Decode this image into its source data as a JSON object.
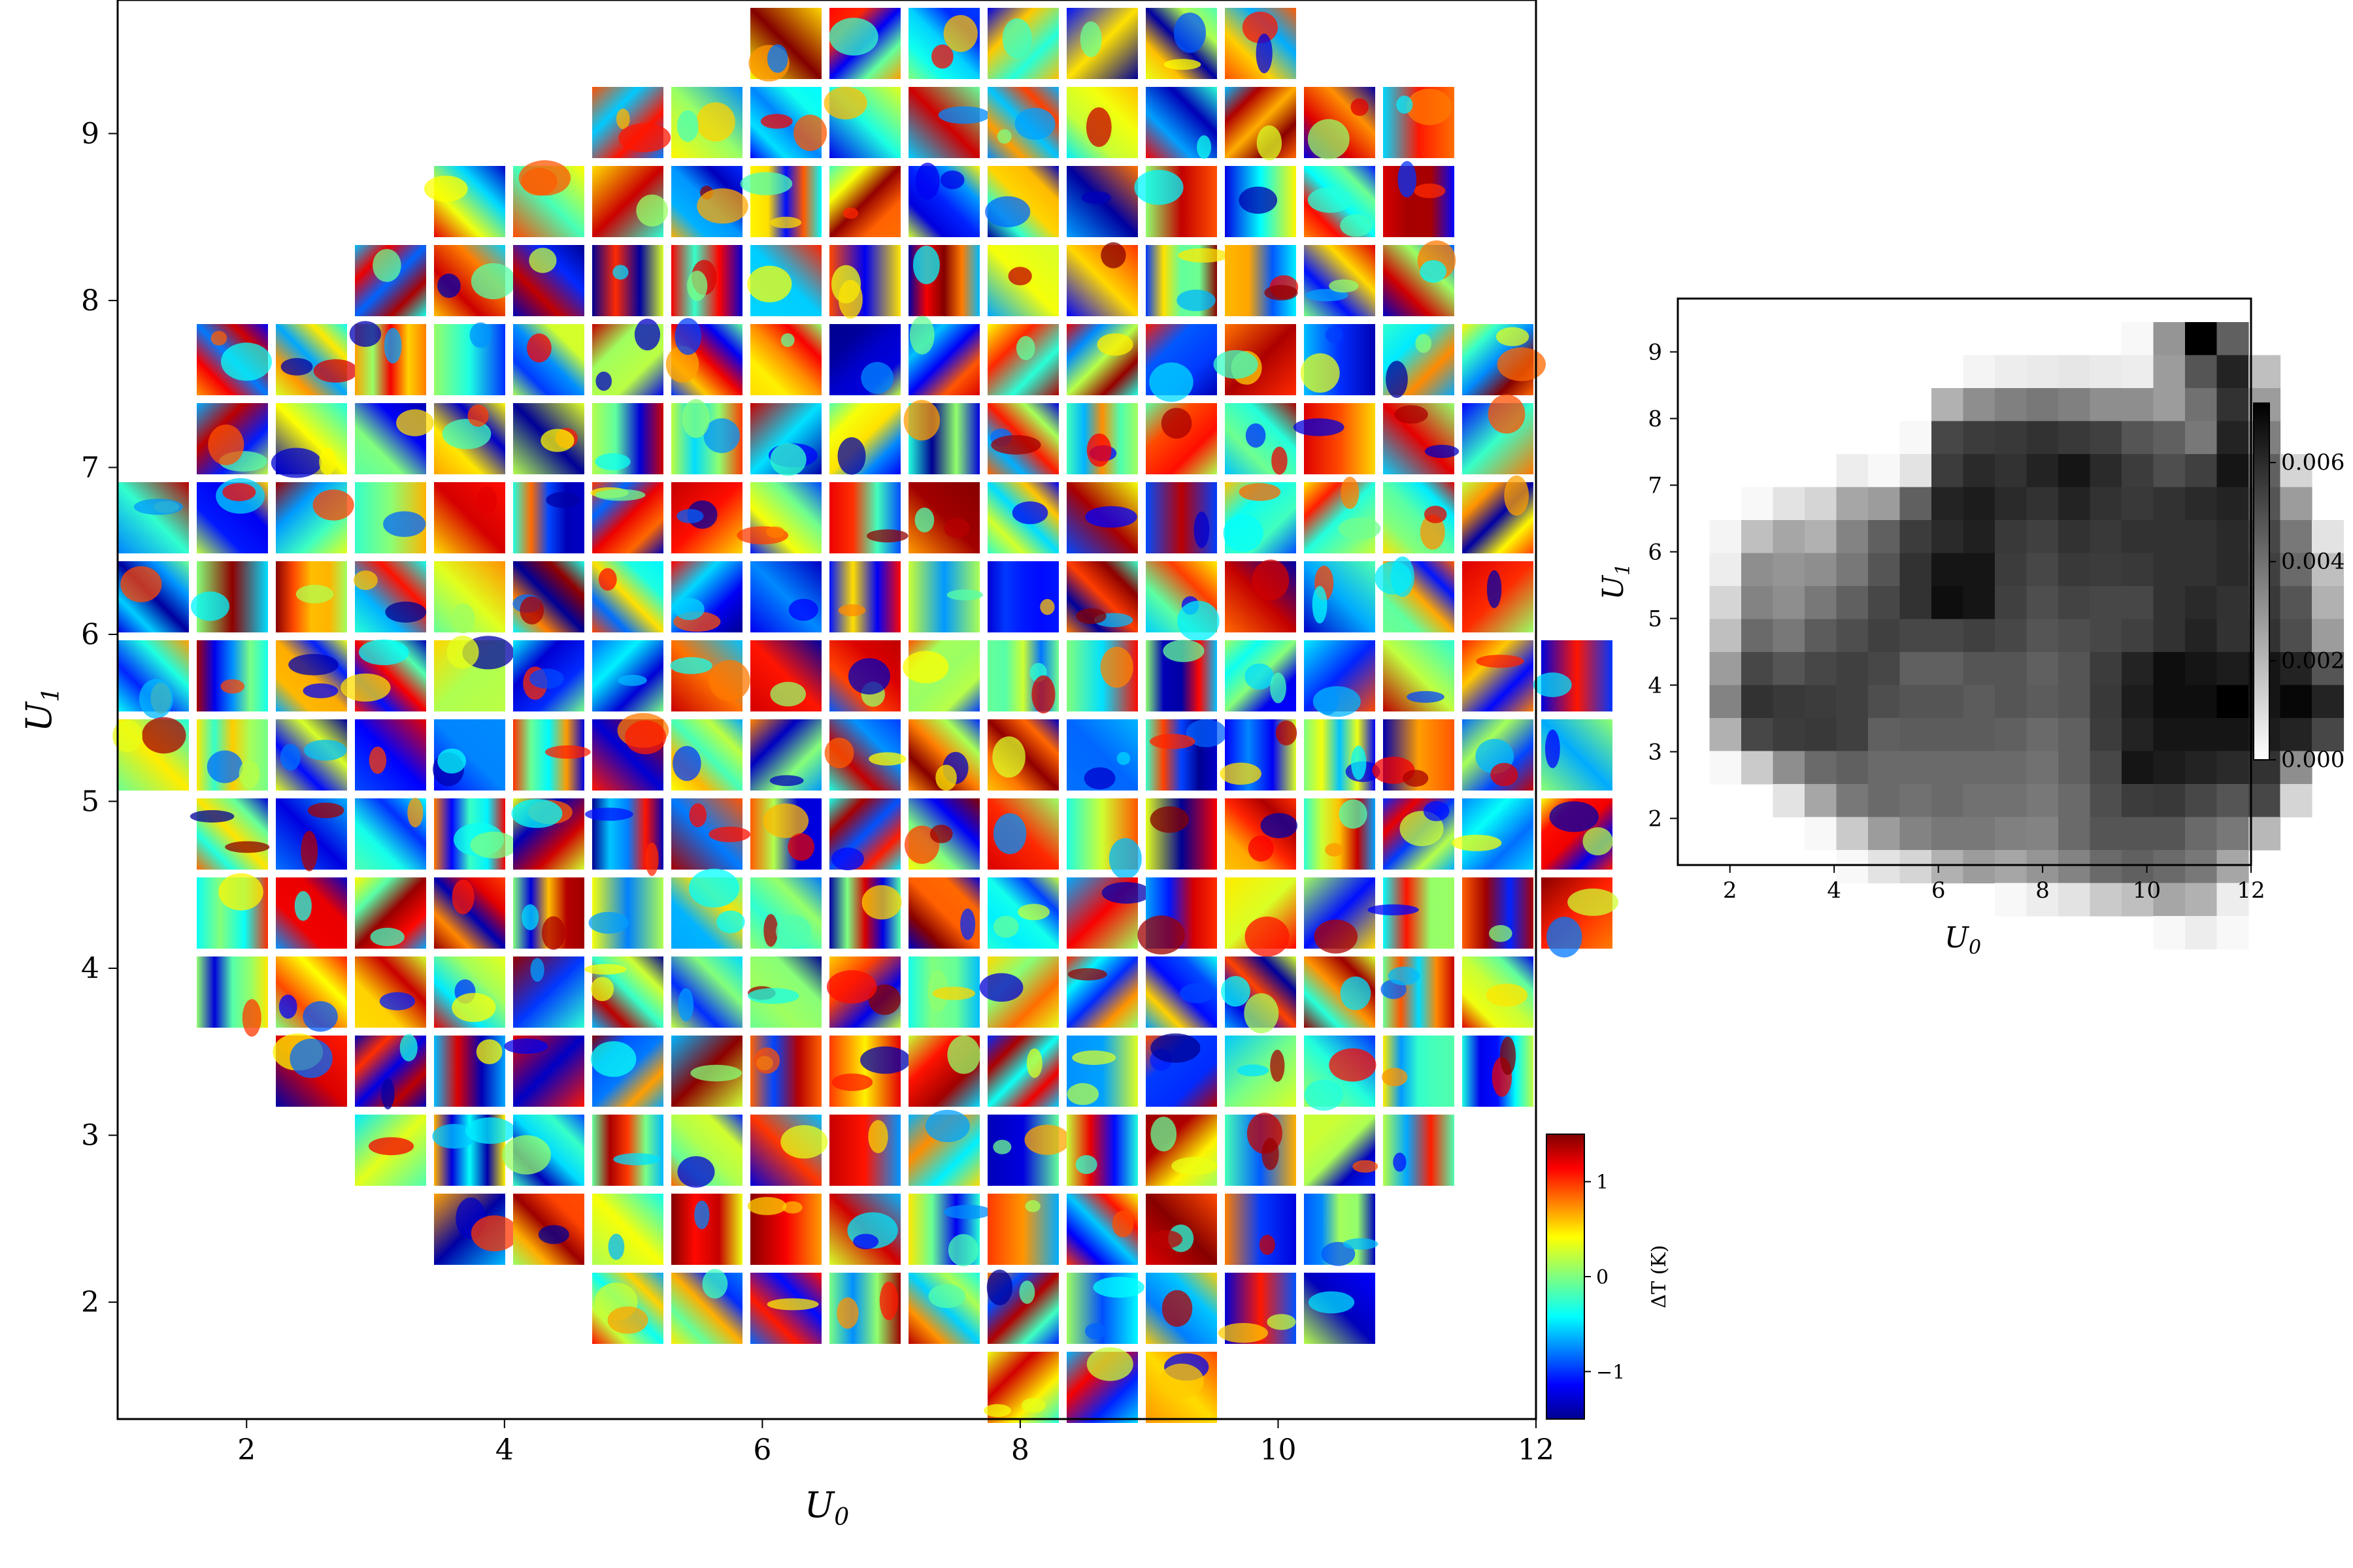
{
  "chart_data": [
    {
      "type": "heatmap",
      "description_role": "main tiled map",
      "xlabel": "U",
      "xlabel_sub": "0",
      "ylabel": "U",
      "ylabel_sub": "1",
      "xlim": [
        1.0,
        12.0
      ],
      "ylim": [
        1.3,
        9.8
      ],
      "xticks": [
        2,
        4,
        6,
        8,
        10,
        12
      ],
      "yticks": [
        2,
        3,
        4,
        5,
        6,
        7,
        8,
        9
      ],
      "colormap": "jet",
      "colorbar": {
        "label": "ΔT (K)",
        "ticks": [
          1,
          0,
          -1
        ],
        "tick_labels": [
          "1",
          "0",
          "−1"
        ],
        "range": [
          -1.5,
          1.5
        ]
      },
      "tile_rows": [
        {
          "row": 0,
          "cols": [
            8,
            9,
            10,
            11,
            12,
            13,
            14
          ]
        },
        {
          "row": 1,
          "cols": [
            6,
            7,
            8,
            9,
            10,
            11,
            12,
            13,
            14,
            15,
            16
          ]
        },
        {
          "row": 2,
          "cols": [
            4,
            5,
            6,
            7,
            8,
            9,
            10,
            11,
            12,
            13,
            14,
            15,
            16
          ]
        },
        {
          "row": 3,
          "cols": [
            3,
            4,
            5,
            6,
            7,
            8,
            9,
            10,
            11,
            12,
            13,
            14,
            15,
            16
          ]
        },
        {
          "row": 4,
          "cols": [
            1,
            2,
            3,
            4,
            5,
            6,
            7,
            8,
            9,
            10,
            11,
            12,
            13,
            14,
            15,
            16,
            17
          ]
        },
        {
          "row": 5,
          "cols": [
            1,
            2,
            3,
            4,
            5,
            6,
            7,
            8,
            9,
            10,
            11,
            12,
            13,
            14,
            15,
            16,
            17
          ]
        },
        {
          "row": 6,
          "cols": [
            0,
            1,
            2,
            3,
            4,
            5,
            6,
            7,
            8,
            9,
            10,
            11,
            12,
            13,
            14,
            15,
            16,
            17
          ]
        },
        {
          "row": 7,
          "cols": [
            0,
            1,
            2,
            3,
            4,
            5,
            6,
            7,
            8,
            9,
            10,
            11,
            12,
            13,
            14,
            15,
            16,
            17
          ]
        },
        {
          "row": 8,
          "cols": [
            0,
            1,
            2,
            3,
            4,
            5,
            6,
            7,
            8,
            9,
            10,
            11,
            12,
            13,
            14,
            15,
            16,
            17,
            18
          ]
        },
        {
          "row": 9,
          "cols": [
            0,
            1,
            2,
            3,
            4,
            5,
            6,
            7,
            8,
            9,
            10,
            11,
            12,
            13,
            14,
            15,
            16,
            17,
            18
          ]
        },
        {
          "row": 10,
          "cols": [
            1,
            2,
            3,
            4,
            5,
            6,
            7,
            8,
            9,
            10,
            11,
            12,
            13,
            14,
            15,
            16,
            17,
            18
          ]
        },
        {
          "row": 11,
          "cols": [
            1,
            2,
            3,
            4,
            5,
            6,
            7,
            8,
            9,
            10,
            11,
            12,
            13,
            14,
            15,
            16,
            17,
            18
          ]
        },
        {
          "row": 12,
          "cols": [
            1,
            2,
            3,
            4,
            5,
            6,
            7,
            8,
            9,
            10,
            11,
            12,
            13,
            14,
            15,
            16,
            17
          ]
        },
        {
          "row": 13,
          "cols": [
            2,
            3,
            4,
            5,
            6,
            7,
            8,
            9,
            10,
            11,
            12,
            13,
            14,
            15,
            16,
            17
          ]
        },
        {
          "row": 14,
          "cols": [
            3,
            4,
            5,
            6,
            7,
            8,
            9,
            10,
            11,
            12,
            13,
            14,
            15,
            16
          ]
        },
        {
          "row": 15,
          "cols": [
            4,
            5,
            6,
            7,
            8,
            9,
            10,
            11,
            12,
            13,
            14,
            15
          ]
        },
        {
          "row": 16,
          "cols": [
            6,
            7,
            8,
            9,
            10,
            11,
            12,
            13,
            14,
            15
          ]
        },
        {
          "row": 17,
          "cols": [
            11,
            12,
            13
          ]
        }
      ]
    },
    {
      "type": "heatmap",
      "description_role": "inset grayscale map",
      "xlabel": "U",
      "xlabel_sub": "0",
      "ylabel": "U",
      "ylabel_sub": "1",
      "xlim": [
        1.0,
        12.0
      ],
      "ylim": [
        1.3,
        9.8
      ],
      "xticks": [
        2,
        4,
        6,
        8,
        10,
        12
      ],
      "yticks": [
        2,
        3,
        4,
        5,
        6,
        7,
        8,
        9
      ],
      "colormap": "gray_r",
      "colorbar": {
        "ticks": [
          0.006,
          0.004,
          0.002,
          0.0
        ],
        "tick_labels": [
          "0.006",
          "0.004",
          "0.002",
          "0.000"
        ],
        "range": [
          0.0,
          0.0072
        ]
      },
      "grid_values": [
        [
          0,
          0,
          0,
          0,
          0,
          0,
          0,
          0,
          0,
          0,
          0,
          0,
          0,
          0,
          0.0002,
          0.003,
          0.0072,
          0.0045,
          0,
          0,
          0
        ],
        [
          0,
          0,
          0,
          0,
          0,
          0,
          0,
          0,
          0,
          0.0003,
          0.0005,
          0.0006,
          0.0007,
          0.0006,
          0.0005,
          0.0028,
          0.0048,
          0.0062,
          0.0018,
          0,
          0
        ],
        [
          0,
          0,
          0,
          0,
          0,
          0,
          0,
          0,
          0.0022,
          0.0032,
          0.0036,
          0.0038,
          0.0036,
          0.0032,
          0.0032,
          0.0028,
          0.004,
          0.0058,
          0.0028,
          0,
          0
        ],
        [
          0,
          0,
          0,
          0,
          0,
          0,
          0,
          0.0002,
          0.0052,
          0.0055,
          0.0056,
          0.0058,
          0.0056,
          0.0054,
          0.0048,
          0.0045,
          0.0038,
          0.0062,
          0.0036,
          0,
          0
        ],
        [
          0,
          0,
          0,
          0,
          0,
          0.0005,
          0.0002,
          0.0008,
          0.0055,
          0.006,
          0.0058,
          0.0062,
          0.0066,
          0.006,
          0.0055,
          0.005,
          0.0054,
          0.0066,
          0.0045,
          0.0012,
          0
        ],
        [
          0,
          0,
          0.0002,
          0.0008,
          0.0012,
          0.0025,
          0.0028,
          0.0045,
          0.0062,
          0.0064,
          0.006,
          0.0058,
          0.0062,
          0.0058,
          0.0056,
          0.0058,
          0.006,
          0.0062,
          0.0048,
          0.0028,
          0
        ],
        [
          0,
          0.0003,
          0.0018,
          0.0025,
          0.0022,
          0.0035,
          0.0045,
          0.0055,
          0.006,
          0.0063,
          0.0056,
          0.0054,
          0.0058,
          0.0056,
          0.0058,
          0.0058,
          0.0058,
          0.006,
          0.0052,
          0.0038,
          0.0008
        ],
        [
          0,
          0.0005,
          0.0032,
          0.003,
          0.0032,
          0.0038,
          0.0048,
          0.0058,
          0.0066,
          0.0066,
          0.0055,
          0.0052,
          0.0056,
          0.0055,
          0.0056,
          0.0058,
          0.0058,
          0.006,
          0.0054,
          0.0042,
          0.0018
        ],
        [
          0,
          0.0012,
          0.0035,
          0.0032,
          0.0038,
          0.0045,
          0.0052,
          0.0058,
          0.0068,
          0.0066,
          0.0054,
          0.005,
          0.0053,
          0.0052,
          0.0052,
          0.0058,
          0.006,
          0.0058,
          0.0056,
          0.0048,
          0.0022
        ],
        [
          0,
          0.0018,
          0.0042,
          0.0038,
          0.0046,
          0.005,
          0.0054,
          0.0052,
          0.0052,
          0.0054,
          0.0052,
          0.0048,
          0.005,
          0.0052,
          0.0054,
          0.0058,
          0.0062,
          0.0058,
          0.0058,
          0.005,
          0.0028
        ],
        [
          0,
          0.0028,
          0.0052,
          0.0048,
          0.0052,
          0.0054,
          0.0052,
          0.0045,
          0.0045,
          0.0048,
          0.0048,
          0.0045,
          0.0048,
          0.0055,
          0.0062,
          0.0068,
          0.0066,
          0.0064,
          0.0066,
          0.0062,
          0.0048
        ],
        [
          0,
          0.0035,
          0.0058,
          0.0056,
          0.0055,
          0.0054,
          0.005,
          0.0048,
          0.0048,
          0.0046,
          0.0048,
          0.0046,
          0.0048,
          0.0056,
          0.0064,
          0.0068,
          0.0068,
          0.0072,
          0.0066,
          0.007,
          0.0062
        ],
        [
          0,
          0.0022,
          0.0052,
          0.0055,
          0.0056,
          0.0054,
          0.0045,
          0.0046,
          0.0046,
          0.0046,
          0.0045,
          0.0042,
          0.0045,
          0.0055,
          0.0062,
          0.0066,
          0.0066,
          0.0066,
          0.0064,
          0.0062,
          0.0052
        ],
        [
          0,
          0.0002,
          0.0015,
          0.0032,
          0.0042,
          0.0045,
          0.0042,
          0.0042,
          0.0042,
          0.0042,
          0.0042,
          0.004,
          0.0045,
          0.0052,
          0.0066,
          0.0064,
          0.0062,
          0.006,
          0.0058,
          0.0032,
          0
        ],
        [
          0,
          0,
          0,
          0.0008,
          0.0025,
          0.0038,
          0.0042,
          0.004,
          0.0042,
          0.004,
          0.004,
          0.0038,
          0.0042,
          0.005,
          0.0055,
          0.0056,
          0.0052,
          0.0048,
          0.0052,
          0.0012,
          0
        ],
        [
          0,
          0,
          0,
          0,
          0.0002,
          0.0015,
          0.0028,
          0.0035,
          0.0038,
          0.0038,
          0.0036,
          0.0035,
          0.0042,
          0.0048,
          0.0048,
          0.0048,
          0.0042,
          0.0038,
          0.002,
          0,
          0
        ],
        [
          0,
          0,
          0,
          0,
          0,
          0.0002,
          0.0008,
          0.0012,
          0.0022,
          0.0028,
          0.0025,
          0.003,
          0.0035,
          0.0042,
          0.0045,
          0.0042,
          0.0038,
          0.0025,
          0,
          0,
          0
        ],
        [
          0,
          0,
          0,
          0,
          0,
          0,
          0,
          0,
          0,
          0,
          0.0002,
          0.0005,
          0.0008,
          0.0015,
          0.0018,
          0.0025,
          0.0022,
          0.0005,
          0,
          0,
          0
        ],
        [
          0,
          0,
          0,
          0,
          0,
          0,
          0,
          0,
          0,
          0,
          0,
          0,
          0,
          0,
          0,
          0.0002,
          0.0005,
          0.0002,
          0,
          0,
          0
        ]
      ]
    }
  ]
}
